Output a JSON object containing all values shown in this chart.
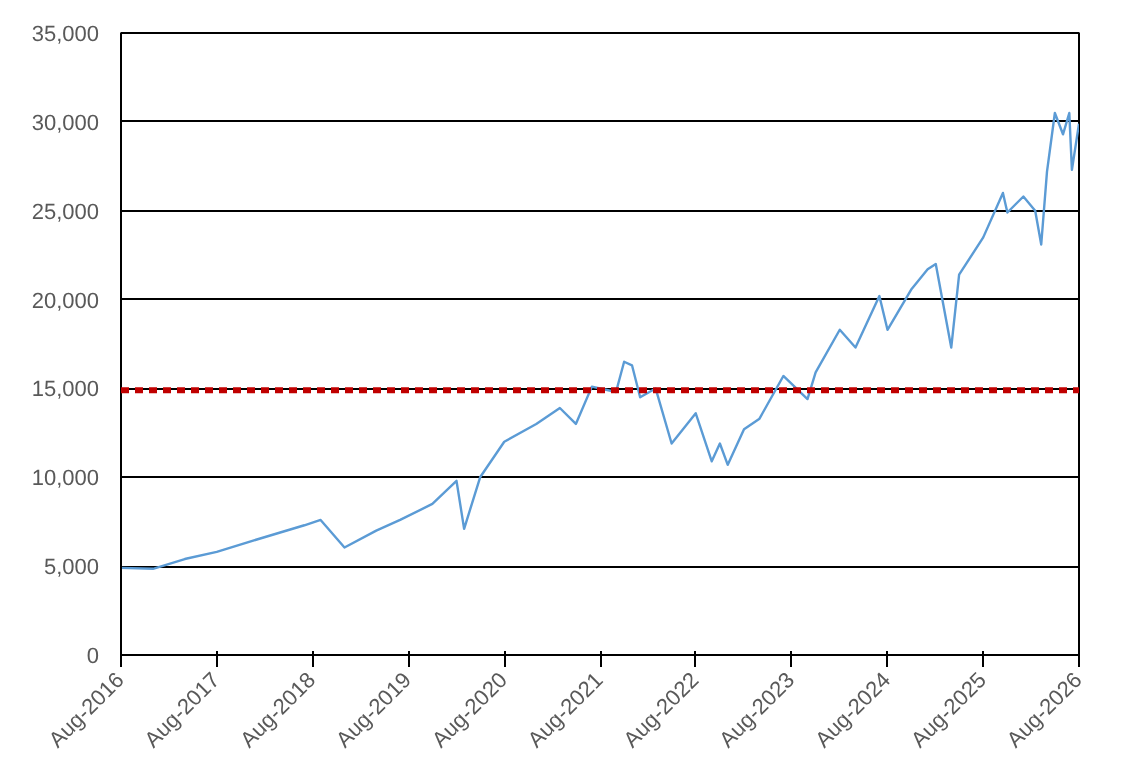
{
  "chart_data": {
    "type": "line",
    "x": [
      "2016-08",
      "2016-12",
      "2017-04",
      "2017-08",
      "2018-01",
      "2018-07",
      "2018-09",
      "2018-12",
      "2019-04",
      "2019-07",
      "2019-11",
      "2020-02",
      "2020-03",
      "2020-05",
      "2020-08",
      "2020-12",
      "2021-03",
      "2021-05",
      "2021-07",
      "2021-10",
      "2021-11",
      "2021-12",
      "2022-01",
      "2022-03",
      "2022-05",
      "2022-08",
      "2022-10",
      "2022-11",
      "2022-12",
      "2023-02",
      "2023-04",
      "2023-07",
      "2023-10",
      "2023-11",
      "2024-02",
      "2024-04",
      "2024-07",
      "2024-08",
      "2024-11",
      "2025-01",
      "2025-02",
      "2025-04",
      "2025-05",
      "2025-08",
      "2025-10-15",
      "2025-11",
      "2026-01",
      "2026-02-15",
      "2026-03-10",
      "2026-04",
      "2026-05",
      "2026-06",
      "2026-06-25",
      "2026-07-05",
      "2026-08"
    ],
    "series": [
      {
        "color": "#5b9bd5",
        "values": [
          4900,
          4850,
          5400,
          5800,
          6500,
          7300,
          7600,
          6050,
          7000,
          7600,
          8500,
          9800,
          7100,
          10000,
          12000,
          13000,
          13900,
          13000,
          15100,
          14800,
          16500,
          16300,
          14500,
          15000,
          11900,
          13600,
          10900,
          11900,
          10700,
          12700,
          13300,
          15700,
          14400,
          15900,
          18300,
          17300,
          20200,
          18300,
          20600,
          21700,
          22000,
          17300,
          21400,
          23500,
          26000,
          24900,
          25800,
          25000,
          23100,
          27200,
          30500,
          29300,
          30500,
          27300,
          29900
        ]
      }
    ],
    "xlim": [
      "2016-08",
      "2026-08"
    ],
    "xticks": [
      {
        "value": "2016-08",
        "label": "Aug-2016"
      },
      {
        "value": "2017-08",
        "label": "Aug-2017"
      },
      {
        "value": "2018-08",
        "label": "Aug-2018"
      },
      {
        "value": "2019-08",
        "label": "Aug-2019"
      },
      {
        "value": "2020-08",
        "label": "Aug-2020"
      },
      {
        "value": "2021-08",
        "label": "Aug-2021"
      },
      {
        "value": "2022-08",
        "label": "Aug-2022"
      },
      {
        "value": "2023-08",
        "label": "Aug-2023"
      },
      {
        "value": "2024-08",
        "label": "Aug-2024"
      },
      {
        "value": "2025-08",
        "label": "Aug-2025"
      },
      {
        "value": "2026-08",
        "label": "Aug-2026"
      }
    ],
    "ylim": [
      0,
      35000
    ],
    "yticks": [
      0,
      {
        "value": 5000,
        "label": "5,000"
      },
      {
        "value": 10000,
        "label": "10,000"
      },
      {
        "value": 15000,
        "label": "15,000"
      },
      {
        "value": 20000,
        "label": "20,000"
      },
      {
        "value": 25000,
        "label": "25,000"
      },
      {
        "value": 30000,
        "label": "30,000"
      },
      {
        "value": 35000,
        "label": "35,000"
      }
    ],
    "grid": "y",
    "ref_lines": [
      {
        "axis": "y",
        "value": 14900,
        "color": "#c00000",
        "line_style": "dashed"
      }
    ]
  }
}
